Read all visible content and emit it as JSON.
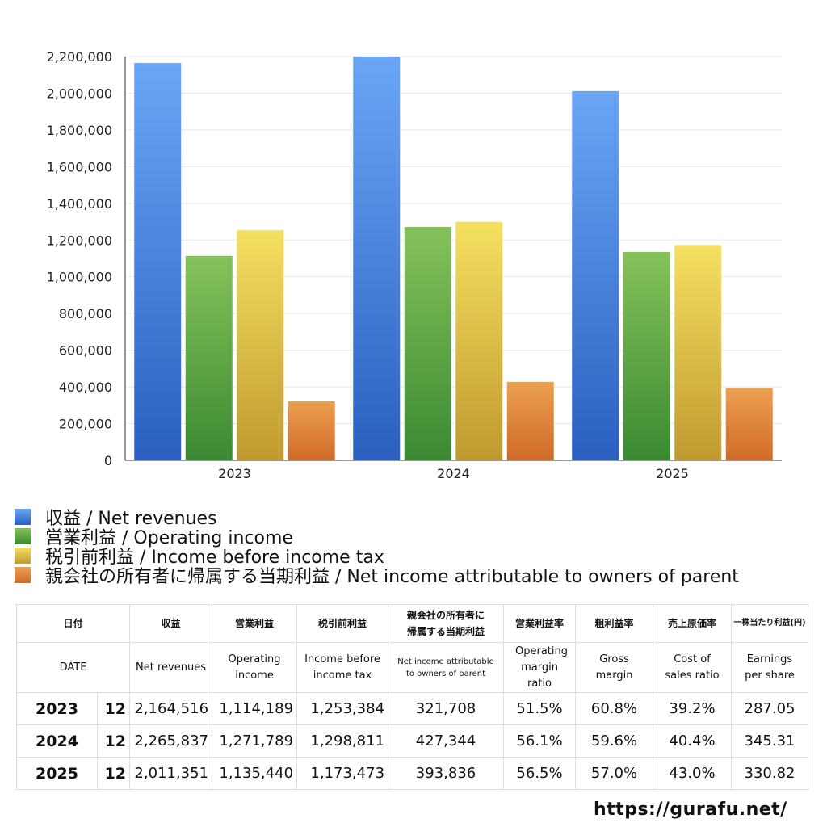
{
  "chart_data": {
    "type": "bar",
    "categories": [
      "2023",
      "2024",
      "2025"
    ],
    "series": [
      {
        "name": "収益 / Net revenues",
        "color": "#3f7fe0",
        "values": [
          2164516,
          2265837,
          2011351
        ]
      },
      {
        "name": "営業利益 / Operating income",
        "color": "#4f9f3f",
        "values": [
          1114189,
          1271789,
          1135440
        ]
      },
      {
        "name": "税引前利益 / Income before income tax",
        "color": "#e0c040",
        "values": [
          1253384,
          1298811,
          1173473
        ]
      },
      {
        "name": "親会社の所有者に帰属する当期利益 / Net income attributable to owners of parent",
        "color": "#e07f30",
        "values": [
          321708,
          427344,
          393836
        ]
      }
    ],
    "ylim": [
      0,
      2200000
    ],
    "yticks": [
      "0",
      "200,000",
      "400,000",
      "600,000",
      "800,000",
      "1,000,000",
      "1,200,000",
      "1,400,000",
      "1,600,000",
      "1,800,000",
      "2,000,000",
      "2,200,000"
    ],
    "grid": true,
    "legend": "bottom"
  },
  "table": {
    "header_jp": [
      "日付",
      "収益",
      "営業利益",
      "税引前利益",
      "親会社の所有者に帰属する当期利益",
      "営業利益率",
      "粗利益率",
      "売上原価率",
      "一株当たり利益(円)"
    ],
    "header_en": [
      "DATE",
      "Net revenues",
      "Operating income",
      "Income before income tax",
      "Net income attributable to owners of parent",
      "Operating margin ratio",
      "Gross margin",
      "Cost of sales ratio",
      "Earnings per share"
    ],
    "rows": [
      [
        "2023",
        "12",
        "2,164,516",
        "1,114,189",
        "1,253,384",
        "321,708",
        "51.5%",
        "60.8%",
        "39.2%",
        "287.05"
      ],
      [
        "2024",
        "12",
        "2,265,837",
        "1,271,789",
        "1,298,811",
        "427,344",
        "56.1%",
        "59.6%",
        "40.4%",
        "345.31"
      ],
      [
        "2025",
        "12",
        "2,011,351",
        "1,135,440",
        "1,173,473",
        "393,836",
        "56.5%",
        "57.0%",
        "43.0%",
        "330.82"
      ]
    ]
  },
  "footer": {
    "url": "https://gurafu.net/"
  }
}
